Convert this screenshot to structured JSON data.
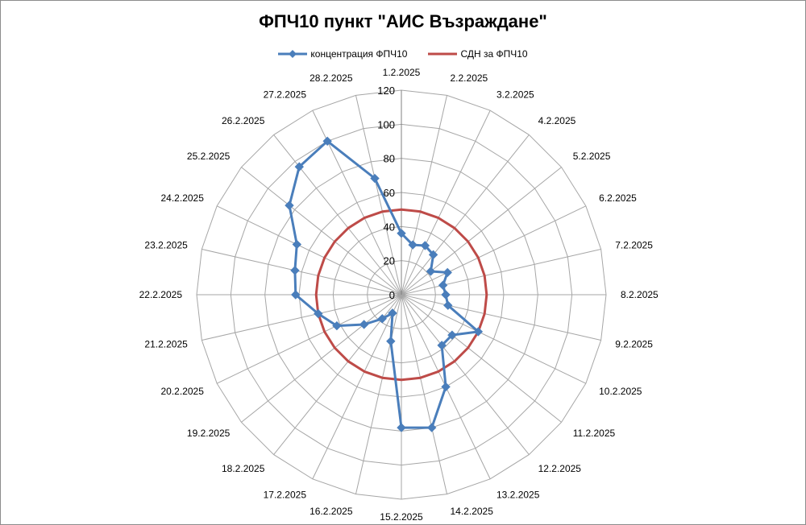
{
  "chart_data": {
    "type": "radar",
    "title": "ФПЧ10 пункт \"АИС Възраждане\"",
    "categories": [
      "1.2.2025",
      "2.2.2025",
      "3.2.2025",
      "4.2.2025",
      "5.2.2025",
      "6.2.2025",
      "7.2.2025",
      "8.2.2025",
      "9.2.2025",
      "10.2.2025",
      "11.2.2025",
      "12.2.2025",
      "13.2.2025",
      "14.2.2025",
      "15.2.2025",
      "16.2.2025",
      "17.2.2025",
      "18.2.2025",
      "19.2.2025",
      "20.2.2025",
      "21.2.2025",
      "22.2.2025",
      "23.2.2025",
      "24.2.2025",
      "25.2.2025",
      "26.2.2025",
      "27.2.2025",
      "28.2.2025"
    ],
    "radial_axis": {
      "min": 0,
      "max": 120,
      "ticks": [
        0,
        20,
        40,
        60,
        80,
        100,
        120
      ]
    },
    "legend_position": "top",
    "series": [
      {
        "name": "концентрация  ФПЧ10",
        "color": "#4a7ebb",
        "marker": "diamond",
        "values": [
          36,
          30,
          32,
          30,
          22,
          30,
          25,
          26,
          28,
          50,
          38,
          38,
          60,
          80,
          78,
          28,
          12,
          18,
          28,
          42,
          50,
          62,
          64,
          68,
          84,
          96,
          100,
          70
        ]
      },
      {
        "name": "СДН за ФПЧ10",
        "color": "#be4b48",
        "marker": "none",
        "values": [
          50,
          50,
          50,
          50,
          50,
          50,
          50,
          50,
          50,
          50,
          50,
          50,
          50,
          50,
          50,
          50,
          50,
          50,
          50,
          50,
          50,
          50,
          50,
          50,
          50,
          50,
          50,
          50
        ]
      }
    ]
  }
}
